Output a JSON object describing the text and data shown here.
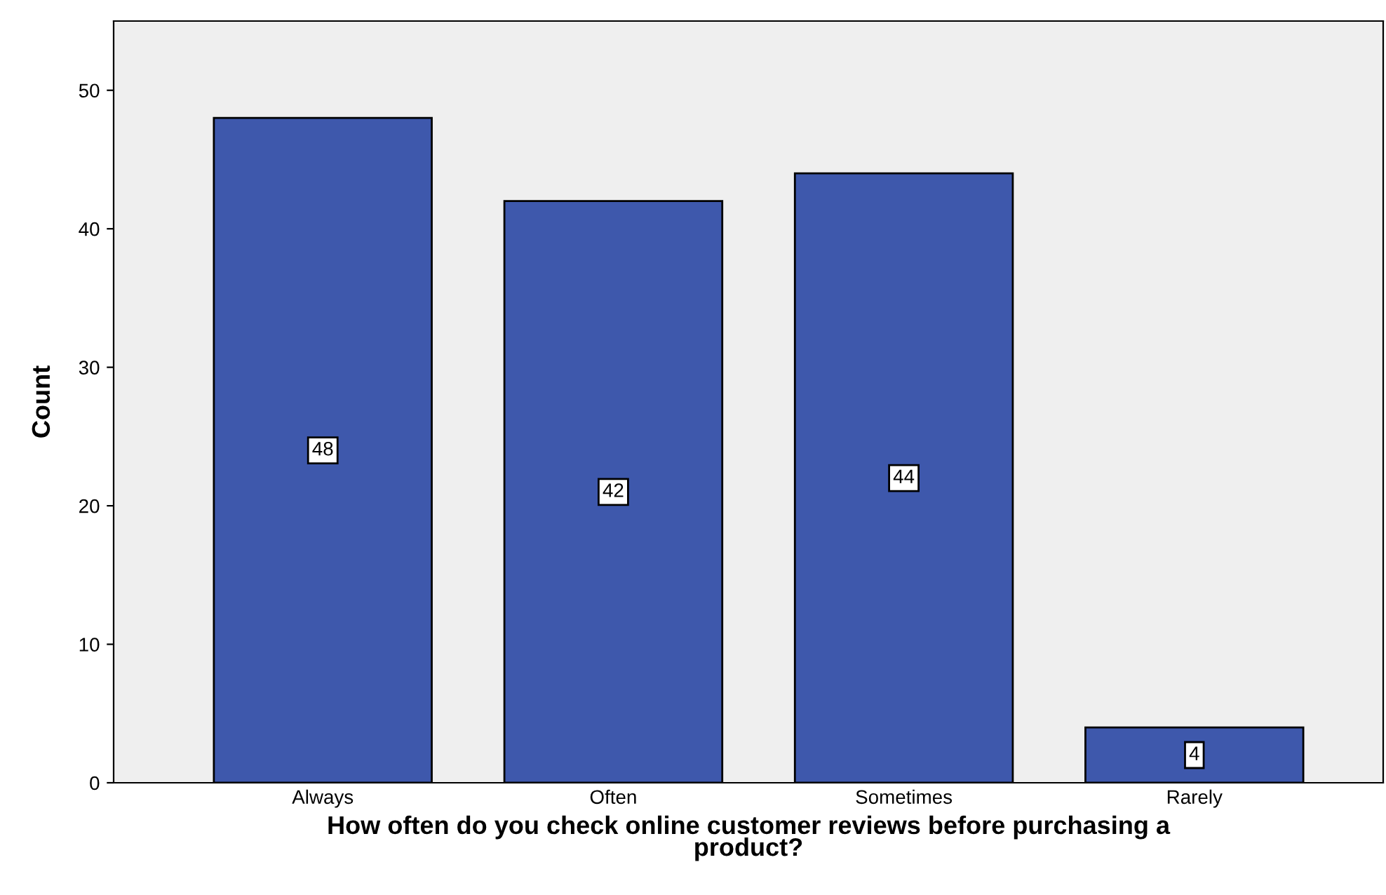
{
  "chart_data": {
    "type": "bar",
    "xlabel": "How often do you check online customer reviews before purchasing a\nproduct?",
    "ylabel": "Count",
    "categories": [
      "Always",
      "Often",
      "Sometimes",
      "Rarely"
    ],
    "values": [
      48,
      42,
      44,
      4
    ],
    "color": "#3e58ac",
    "data_labels": true,
    "ylim": [
      0,
      55
    ],
    "yticks": [
      0,
      10,
      20,
      30,
      40,
      50
    ],
    "grid": false
  }
}
